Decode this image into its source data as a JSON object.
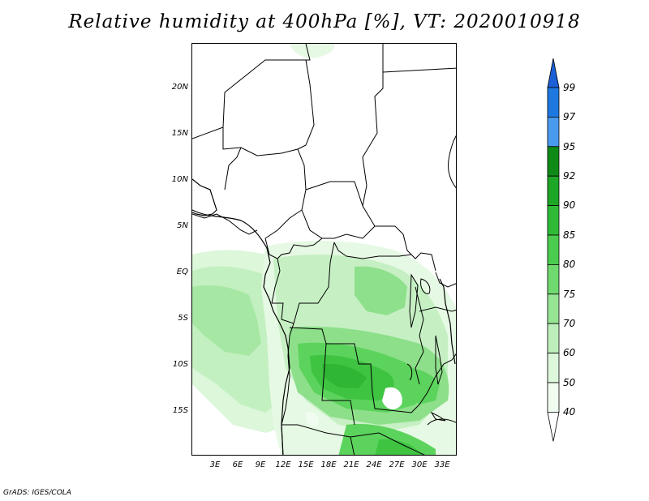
{
  "title": "Relative humidity at 400hPa [%], VT: 2020010918",
  "credit": "GrADS: IGES/COLA",
  "latitude_labels": [
    "20N",
    "15N",
    "10N",
    "5N",
    "EQ",
    "5S",
    "10S",
    "15S"
  ],
  "longitude_labels": [
    "3E",
    "6E",
    "9E",
    "12E",
    "15E",
    "18E",
    "21E",
    "24E",
    "27E",
    "30E",
    "33E"
  ],
  "colorbar": {
    "levels": [
      "99",
      "97",
      "95",
      "92",
      "90",
      "85",
      "80",
      "75",
      "70",
      "60",
      "50",
      "40"
    ],
    "colors": [
      "#1c5fd6",
      "#1f78e0",
      "#4a9aee",
      "#0f8a17",
      "#1ea626",
      "#30bb37",
      "#4bcc4e",
      "#6fd96f",
      "#96e594",
      "#bdefbb",
      "#dcf7da",
      "#f0fcef",
      "#ffffff"
    ]
  }
}
